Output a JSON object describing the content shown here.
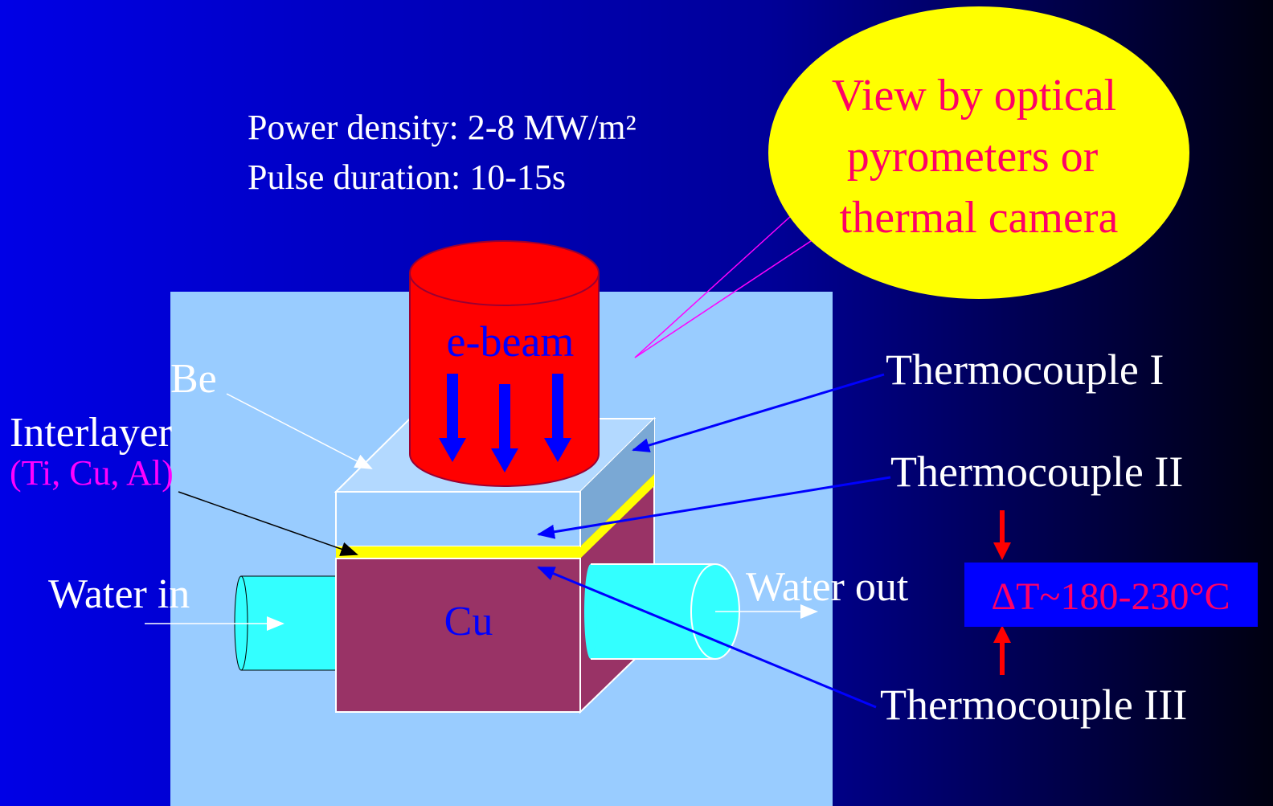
{
  "header": {
    "lines": [
      "Power density: 2-8 MW/m²",
      "Pulse duration: 10-15s"
    ]
  },
  "callout": {
    "lines": [
      "View by optical",
      "pyrometers or",
      "thermal camera"
    ]
  },
  "labels": {
    "ebeam": "e-beam",
    "be": "Be",
    "interlayer": "Interlayer",
    "interlayer_materials": "(Ti, Cu, Al)",
    "water_in": "Water in",
    "cu": "Cu",
    "water_out": "Water out"
  },
  "thermocouples": [
    "Thermocouple I",
    "Thermocouple II",
    "Thermocouple III"
  ],
  "delta_t": "ΔT~180-230°C"
}
